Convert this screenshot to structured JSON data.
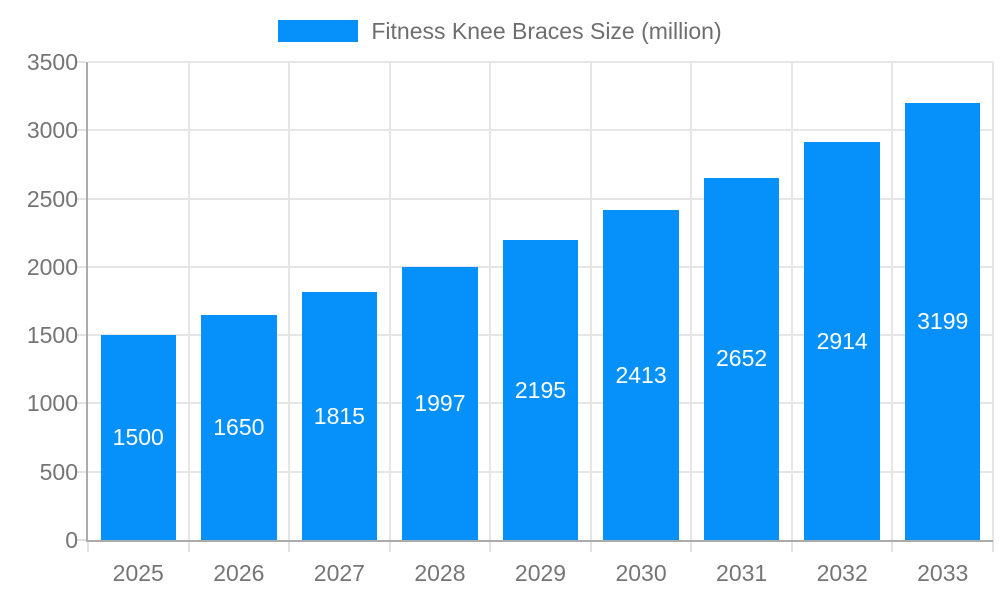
{
  "chart_data": {
    "type": "bar",
    "title": "Fitness Knee Braces Size (million)",
    "legend": {
      "label": "Fitness Knee Braces Size (million)",
      "position": "top-center"
    },
    "categories": [
      "2025",
      "2026",
      "2027",
      "2028",
      "2029",
      "2030",
      "2031",
      "2032",
      "2033"
    ],
    "values": [
      1500,
      1650,
      1815,
      1997,
      2195,
      2413,
      2652,
      2914,
      3199
    ],
    "value_labels_shown": true,
    "xlabel": "",
    "ylabel": "",
    "ylim": [
      0,
      3500
    ],
    "yticks": [
      0,
      500,
      1000,
      1500,
      2000,
      2500,
      3000,
      3500
    ],
    "grid": true,
    "colors": {
      "bar": "#0690FA",
      "bar_value_label": "#ffffff",
      "grid_line": "#e6e6e6",
      "axis_line": "#ababab",
      "tick_label": "#757575",
      "legend_text": "#6e6e6e",
      "background": "#ffffff"
    }
  }
}
